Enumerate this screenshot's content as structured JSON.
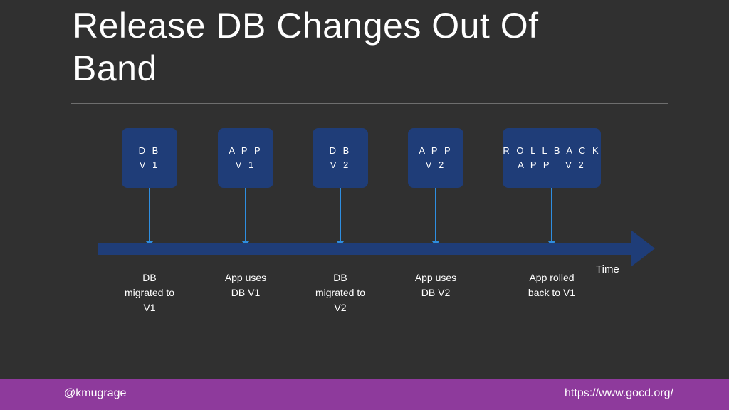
{
  "slide": {
    "title": "Release DB Changes Out Of Band",
    "time_label": "Time",
    "events": [
      {
        "box_line1": "D B",
        "box_line2": "V 1",
        "caption": "DB\nmigrated to\nV1"
      },
      {
        "box_line1": "A P P",
        "box_line2": "V 1",
        "caption": "App uses\nDB V1"
      },
      {
        "box_line1": "D B",
        "box_line2": "V 2",
        "caption": "DB\nmigrated to\nV2"
      },
      {
        "box_line1": "A P P",
        "box_line2": "V 2",
        "caption": "App uses\nDB V2"
      },
      {
        "box_line1": "R O L L B A C K",
        "box_line2": "A P P   V 2",
        "caption": "App rolled\nback to V1"
      }
    ]
  },
  "footer": {
    "handle": "@kmugrage",
    "url": "https://www.gocd.org/"
  },
  "colors": {
    "background": "#303030",
    "box": "#1f3d78",
    "arrow": "#2e8ee0",
    "footer": "#8e3a9c"
  }
}
